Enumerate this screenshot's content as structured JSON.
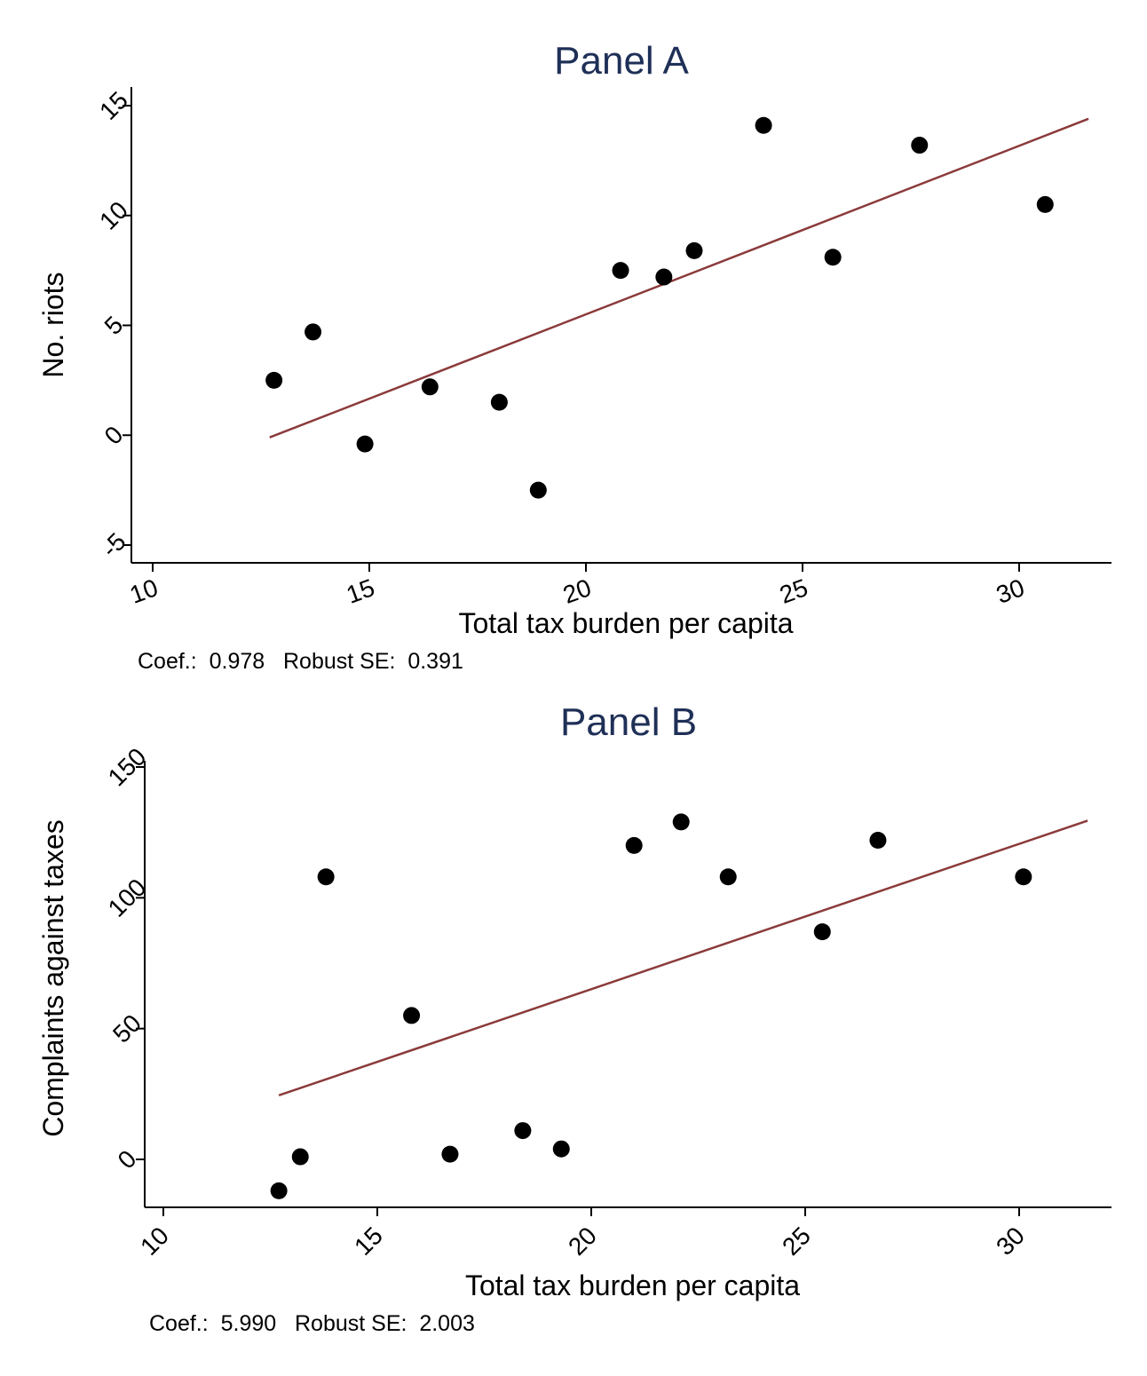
{
  "chart_data": [
    {
      "type": "scatter",
      "title": "Panel A",
      "xlabel": "Total tax burden per capita",
      "ylabel": "No. riots",
      "xlim": [
        10,
        32
      ],
      "ylim": [
        -5,
        15
      ],
      "x_ticks": [
        10,
        15,
        20,
        25,
        30
      ],
      "y_ticks": [
        -5,
        0,
        5,
        10,
        15
      ],
      "x_tick_labels": [
        "10",
        "15",
        "20",
        "25",
        "30"
      ],
      "y_tick_labels": [
        "-5",
        "0",
        "5",
        "10",
        "15"
      ],
      "grid": false,
      "points": [
        {
          "x": 12.8,
          "y": 2.5
        },
        {
          "x": 13.7,
          "y": 4.7
        },
        {
          "x": 14.9,
          "y": -0.4
        },
        {
          "x": 16.4,
          "y": 2.2
        },
        {
          "x": 18.0,
          "y": 1.5
        },
        {
          "x": 18.9,
          "y": -2.5
        },
        {
          "x": 20.8,
          "y": 7.5
        },
        {
          "x": 21.8,
          "y": 7.2
        },
        {
          "x": 22.5,
          "y": 8.4
        },
        {
          "x": 24.1,
          "y": 14.1
        },
        {
          "x": 25.7,
          "y": 8.1
        },
        {
          "x": 27.7,
          "y": 13.2
        },
        {
          "x": 30.6,
          "y": 10.5
        }
      ],
      "fit_line": {
        "x": [
          12.7,
          31.6
        ],
        "y": [
          -0.1,
          14.4
        ],
        "color": "#8b3a3a"
      },
      "note": "Coef.:  0.978   Robust SE:  0.391"
    },
    {
      "type": "scatter",
      "title": "Panel B",
      "xlabel": "Total tax burden per capita",
      "ylabel": "Complaints against taxes",
      "xlim": [
        10,
        32
      ],
      "ylim": [
        -18,
        155
      ],
      "x_ticks": [
        10,
        15,
        20,
        25,
        30
      ],
      "y_ticks": [
        0,
        50,
        100,
        150
      ],
      "x_tick_labels": [
        "10",
        "15",
        "20",
        "25",
        "30"
      ],
      "y_tick_labels": [
        "0",
        "50",
        "100",
        "150"
      ],
      "grid": false,
      "points": [
        {
          "x": 12.7,
          "y": -12
        },
        {
          "x": 13.2,
          "y": 1
        },
        {
          "x": 13.8,
          "y": 108
        },
        {
          "x": 15.8,
          "y": 55
        },
        {
          "x": 16.7,
          "y": 2
        },
        {
          "x": 18.4,
          "y": 11
        },
        {
          "x": 19.3,
          "y": 4
        },
        {
          "x": 21.0,
          "y": 120
        },
        {
          "x": 22.1,
          "y": 129
        },
        {
          "x": 23.2,
          "y": 108
        },
        {
          "x": 25.4,
          "y": 87
        },
        {
          "x": 26.7,
          "y": 122
        },
        {
          "x": 30.1,
          "y": 108
        }
      ],
      "fit_line": {
        "x": [
          12.7,
          31.6
        ],
        "y": [
          24.5,
          129.5
        ],
        "color": "#8b3a3a"
      },
      "note": "Coef.:  5.990   Robust SE:  2.003"
    }
  ],
  "colors": {
    "title": "#1f3057",
    "marker": "#000000",
    "fit_line": "#8b3a3a",
    "axis": "#000000"
  }
}
